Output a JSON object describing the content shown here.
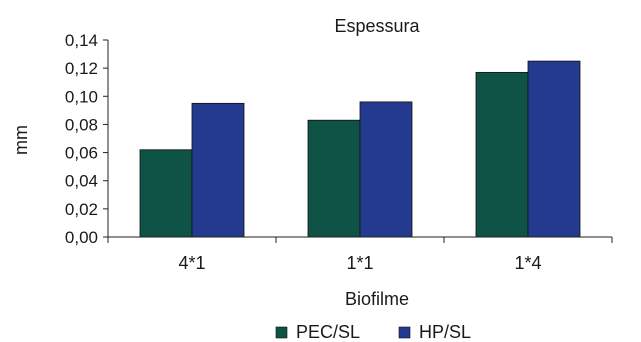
{
  "chart_data": {
    "type": "bar",
    "title": "Espessura",
    "xlabel": "Biofilme",
    "ylabel": "mm",
    "categories": [
      "4*1",
      "1*1",
      "1*4"
    ],
    "series": [
      {
        "name": "PEC/SL",
        "color": "#0f5246",
        "values": [
          0.062,
          0.083,
          0.117
        ]
      },
      {
        "name": "HP/SL",
        "color": "#243a8e",
        "values": [
          0.095,
          0.096,
          0.125
        ]
      }
    ],
    "ylim": [
      0,
      0.14
    ],
    "yticks": [
      "0,00",
      "0,02",
      "0,04",
      "0,06",
      "0,08",
      "0,10",
      "0,12",
      "0,14"
    ],
    "grid": false,
    "legend_position": "bottom"
  }
}
